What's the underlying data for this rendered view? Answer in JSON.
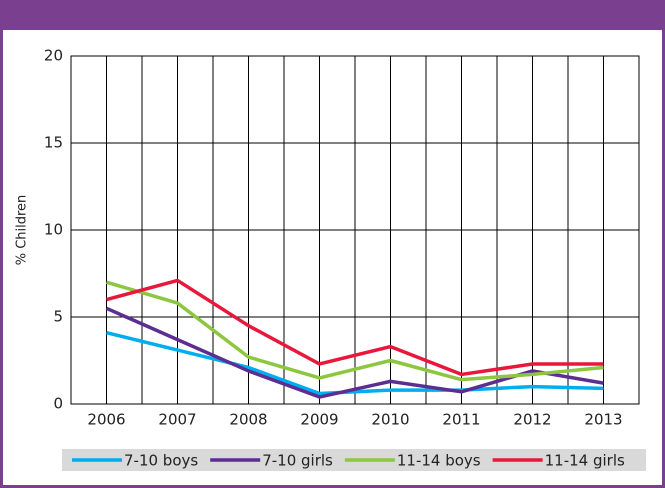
{
  "chart_data": {
    "type": "line",
    "y_label": "% Children",
    "categories": [
      "2006",
      "2007",
      "2008",
      "2009",
      "2010",
      "2011",
      "2012",
      "2013"
    ],
    "series": [
      {
        "name": "7-10 boys",
        "color": "#00aeef",
        "values": [
          4.1,
          3.1,
          2.1,
          0.6,
          0.8,
          0.8,
          1.0,
          0.9
        ]
      },
      {
        "name": "7-10 girls",
        "color": "#5c2e91",
        "values": [
          5.5,
          3.7,
          1.9,
          0.4,
          1.3,
          0.7,
          1.9,
          1.2
        ]
      },
      {
        "name": "11-14 boys",
        "color": "#8dc63f",
        "values": [
          7.0,
          5.8,
          2.7,
          1.5,
          2.5,
          1.4,
          1.7,
          2.1
        ]
      },
      {
        "name": "11-14 girls",
        "color": "#e8173c",
        "values": [
          6.0,
          7.1,
          4.5,
          2.3,
          3.3,
          1.7,
          2.3,
          2.3
        ]
      }
    ],
    "ylim": [
      0,
      20
    ],
    "yticks": [
      0,
      5,
      10,
      15,
      20
    ],
    "grid": true,
    "legend": "bottom"
  }
}
